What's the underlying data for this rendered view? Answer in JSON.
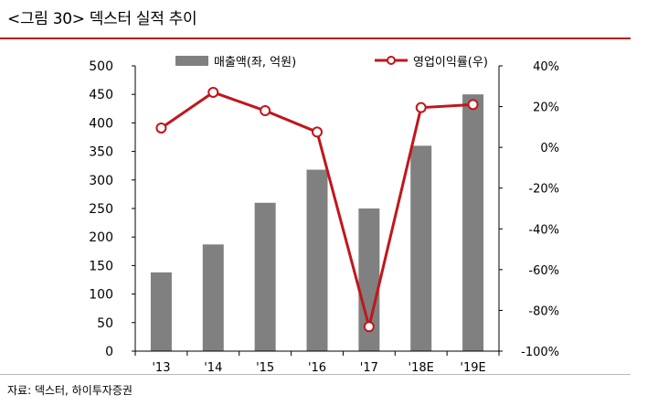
{
  "figure": {
    "title": "<그림 30> 덱스터 실적 추이",
    "source": "자료: 덱스터, 하이투자증권"
  },
  "colors": {
    "bar": "#808080",
    "line": "#c0161c",
    "rule": "#c0161c",
    "axis": "#000000"
  },
  "chart_data": {
    "type": "bar",
    "categories": [
      "'13",
      "'14",
      "'15",
      "'16",
      "'17",
      "'18E",
      "'19E"
    ],
    "series": [
      {
        "name": "매출액(좌, 억원)",
        "type": "bar",
        "axis": "left",
        "values": [
          138,
          187,
          260,
          318,
          250,
          360,
          450
        ]
      },
      {
        "name": "영업이익률(우)",
        "type": "line",
        "axis": "right",
        "values": [
          9.5,
          27,
          18,
          7.5,
          -88,
          19.5,
          21
        ]
      }
    ],
    "y_left": {
      "min": 0,
      "max": 500,
      "ticks": [
        0,
        50,
        100,
        150,
        200,
        250,
        300,
        350,
        400,
        450,
        500
      ]
    },
    "y_right": {
      "min": -100,
      "max": 40,
      "ticks": [
        -100,
        -80,
        -60,
        -40,
        -20,
        0,
        20,
        40
      ],
      "tick_labels": [
        "-100%",
        "-80%",
        "-60%",
        "-40%",
        "-20%",
        "0%",
        "20%",
        "40%"
      ]
    },
    "legend_position": "top",
    "grid": false
  }
}
